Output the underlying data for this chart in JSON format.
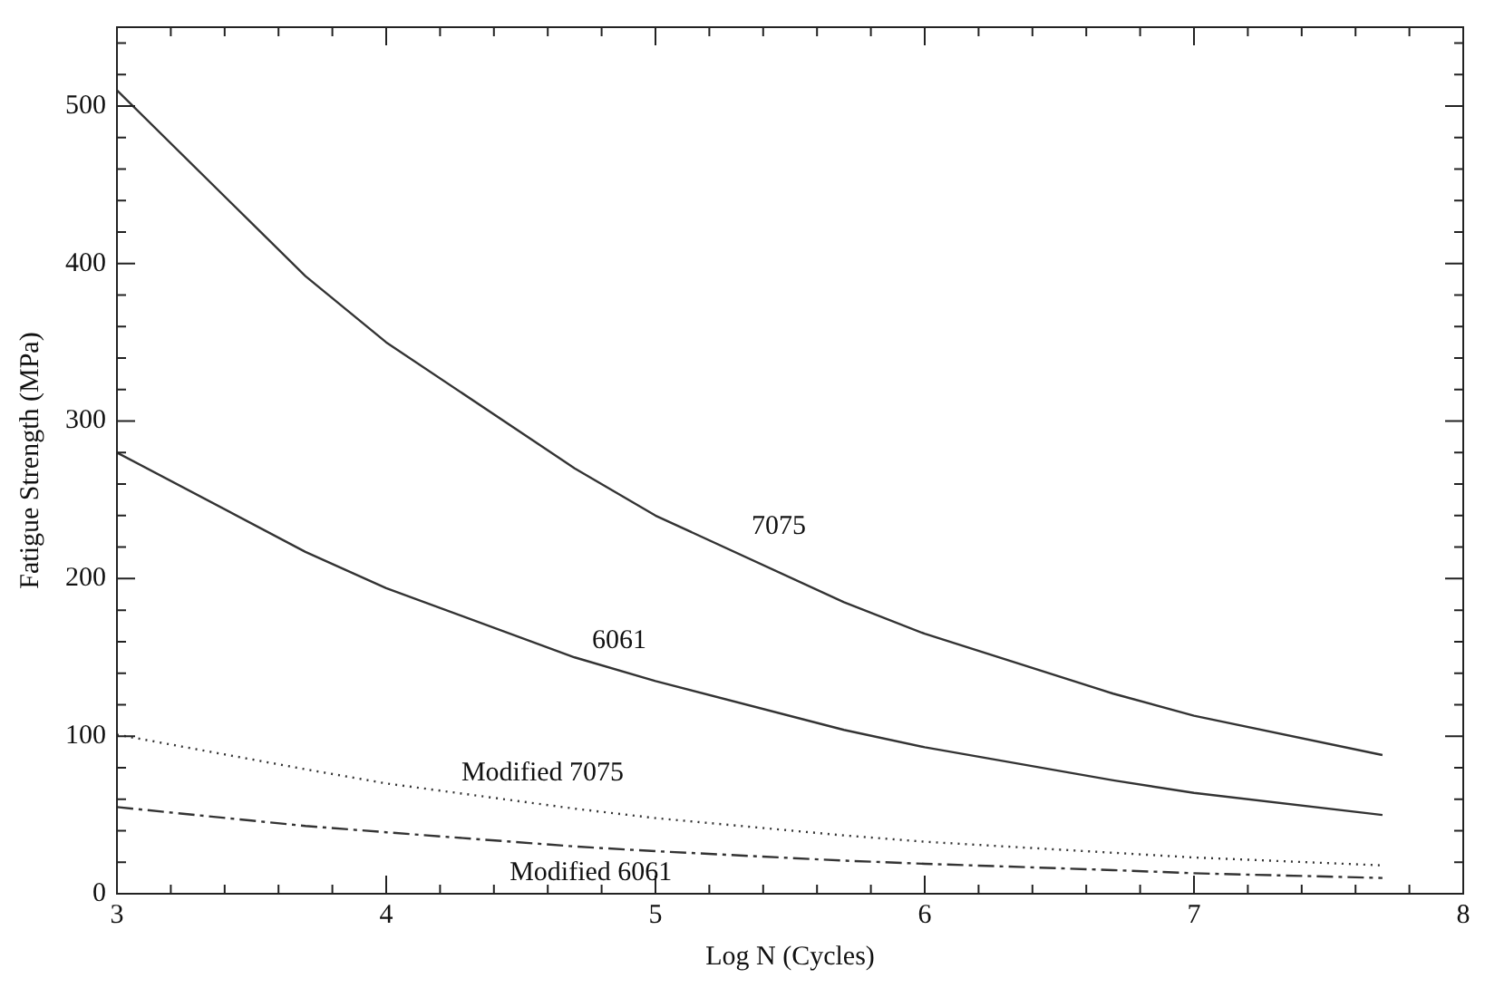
{
  "chart_data": {
    "type": "line",
    "xlabel": "Log N (Cycles)",
    "ylabel": "Fatigue Strength (MPa)",
    "x": [
      3,
      3.7,
      4,
      4.7,
      5,
      5.7,
      6,
      6.7,
      7,
      7.7
    ],
    "xlim": [
      3,
      8
    ],
    "xticks": [
      3,
      {
        "value": 3.2,
        "label": null
      },
      {
        "value": 3.4,
        "label": null
      },
      {
        "value": 3.6,
        "label": null
      },
      {
        "value": 3.8,
        "label": null
      },
      4,
      {
        "value": 4.2,
        "label": null
      },
      {
        "value": 4.4,
        "label": null
      },
      {
        "value": 4.6,
        "label": null
      },
      {
        "value": 4.8,
        "label": null
      },
      5,
      {
        "value": 5.2,
        "label": null
      },
      {
        "value": 5.4,
        "label": null
      },
      {
        "value": 5.6,
        "label": null
      },
      {
        "value": 5.8,
        "label": null
      },
      6,
      {
        "value": 6.2,
        "label": null
      },
      {
        "value": 6.4,
        "label": null
      },
      {
        "value": 6.6,
        "label": null
      },
      {
        "value": 6.8,
        "label": null
      },
      7,
      {
        "value": 7.2,
        "label": null
      },
      {
        "value": 7.4,
        "label": null
      },
      {
        "value": 7.6,
        "label": null
      },
      {
        "value": 7.8,
        "label": null
      },
      8
    ],
    "ylim": [
      0,
      550
    ],
    "yticks": [
      0,
      {
        "value": 20,
        "label": null
      },
      {
        "value": 40,
        "label": null
      },
      {
        "value": 60,
        "label": null
      },
      {
        "value": 80,
        "label": null
      },
      100,
      {
        "value": 120,
        "label": null
      },
      {
        "value": 140,
        "label": null
      },
      {
        "value": 160,
        "label": null
      },
      {
        "value": 180,
        "label": null
      },
      200,
      {
        "value": 220,
        "label": null
      },
      {
        "value": 240,
        "label": null
      },
      {
        "value": 260,
        "label": null
      },
      {
        "value": 280,
        "label": null
      },
      300,
      {
        "value": 320,
        "label": null
      },
      {
        "value": 340,
        "label": null
      },
      {
        "value": 360,
        "label": null
      },
      {
        "value": 380,
        "label": null
      },
      400,
      {
        "value": 420,
        "label": null
      },
      {
        "value": 440,
        "label": null
      },
      {
        "value": 460,
        "label": null
      },
      {
        "value": 480,
        "label": null
      },
      500,
      {
        "value": 520,
        "label": null
      },
      {
        "value": 540,
        "label": null
      }
    ],
    "grid": false,
    "legend": false,
    "marker": "none",
    "series": [
      {
        "name": "7075",
        "color": "#333333",
        "line_style": "solid",
        "values": [
          510,
          392,
          350,
          270,
          240,
          185,
          165,
          127,
          113,
          88
        ]
      },
      {
        "name": "6061",
        "color": "#333333",
        "line_style": "solid",
        "values": [
          280,
          217,
          194,
          150,
          135,
          104,
          93,
          72,
          64,
          50
        ]
      },
      {
        "name": "Modified 7075",
        "color": "#333333",
        "line_style": "dotted",
        "values": [
          101,
          79,
          70,
          54,
          48,
          37,
          33,
          26,
          23,
          18
        ]
      },
      {
        "name": "Modified 6061",
        "color": "#333333",
        "line_style": "dashdot",
        "values": [
          55,
          43,
          39,
          30,
          27,
          21,
          19,
          15,
          13,
          10
        ]
      }
    ]
  }
}
